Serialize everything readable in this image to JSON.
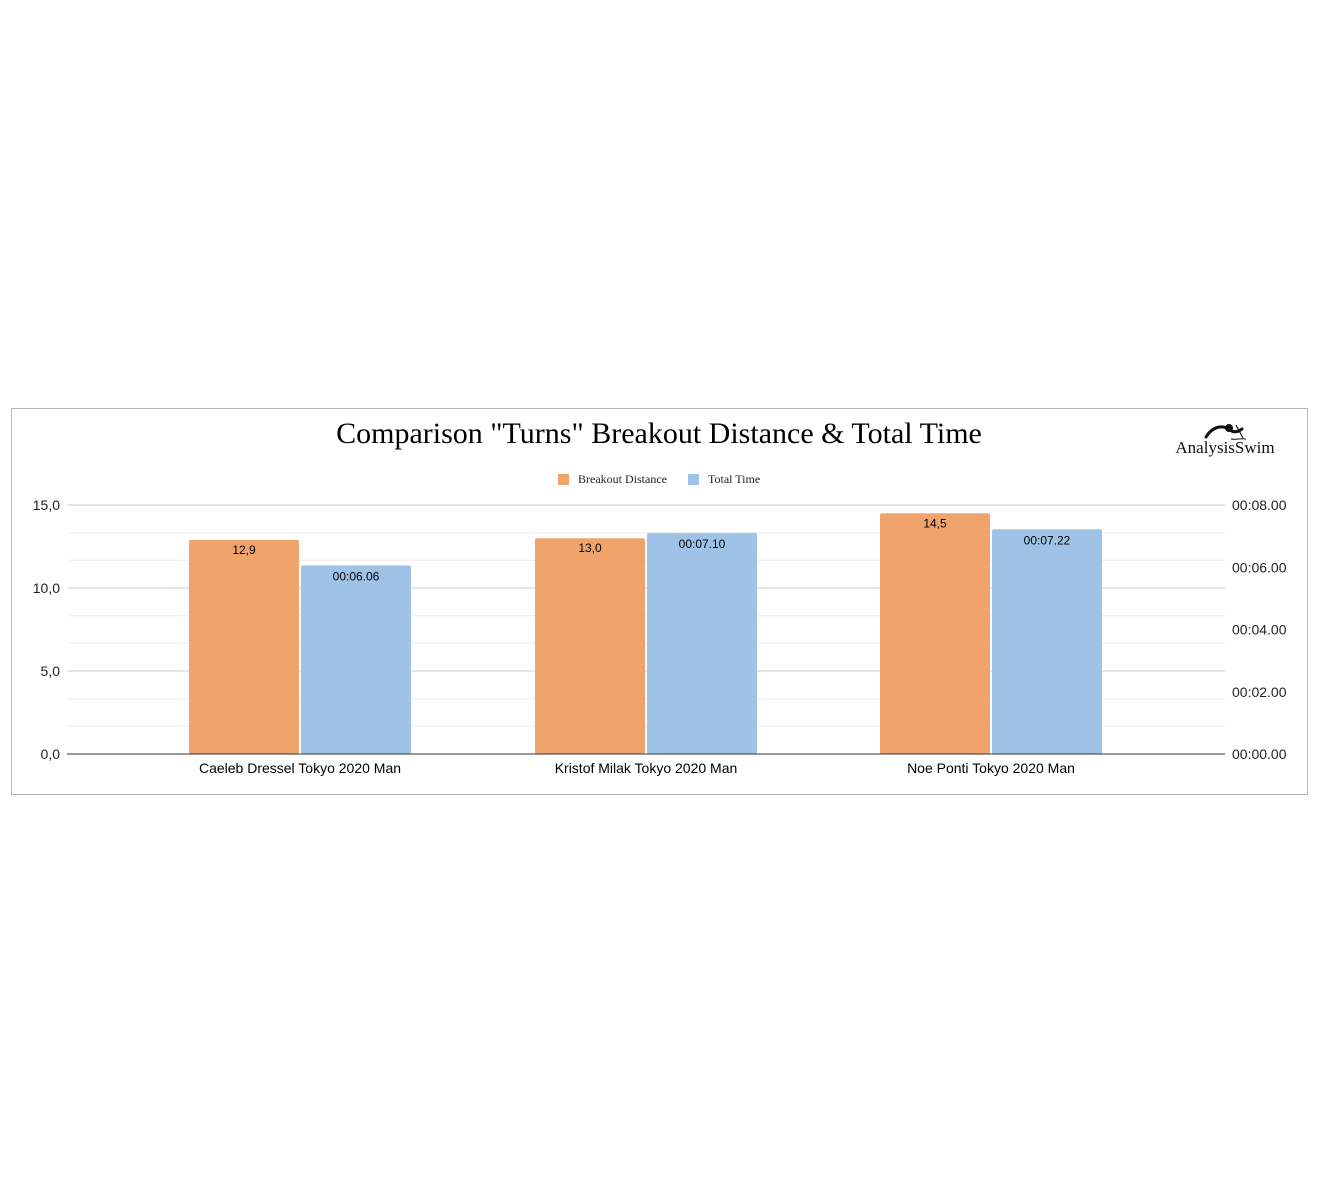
{
  "chart_data": {
    "type": "bar",
    "title": "Comparison \"Turns\" Breakout Distance & Total Time",
    "categories": [
      "Caeleb Dressel Tokyo 2020 Man",
      "Kristof Milak Tokyo 2020 Man",
      "Noe Ponti Tokyo 2020 Man"
    ],
    "series": [
      {
        "name": "Breakout Distance",
        "axis": "left",
        "color": "#f1a36c",
        "values": [
          12.9,
          13.0,
          14.5
        ],
        "value_labels": [
          "12,9",
          "13,0",
          "14,5"
        ]
      },
      {
        "name": "Total Time",
        "axis": "right",
        "color": "#9fc3e6",
        "values_seconds": [
          6.06,
          7.1,
          7.22
        ],
        "value_labels": [
          "00:06.06",
          "00:07.10",
          "00:07.22"
        ]
      }
    ],
    "y_left": {
      "lim": [
        0,
        15
      ],
      "ticks": [
        0,
        5,
        10,
        15
      ],
      "tick_labels": [
        "0,0",
        "5,0",
        "10,0",
        "15,0"
      ]
    },
    "y_right": {
      "lim": [
        0,
        8
      ],
      "ticks": [
        0,
        2,
        4,
        6,
        8
      ],
      "tick_labels": [
        "00:00.00",
        "00:02.00",
        "00:04.00",
        "00:06.00",
        "00:08.00"
      ]
    },
    "minor_gridlines": [
      1.67,
      3.33,
      6.67,
      8.33,
      11.67,
      13.33
    ],
    "grid": true,
    "legend_position": "top-center",
    "xlabel": "",
    "ylabel": ""
  },
  "branding": {
    "logo_text": "AnalysisSwim",
    "logo_icon": "swimmer-icon"
  }
}
